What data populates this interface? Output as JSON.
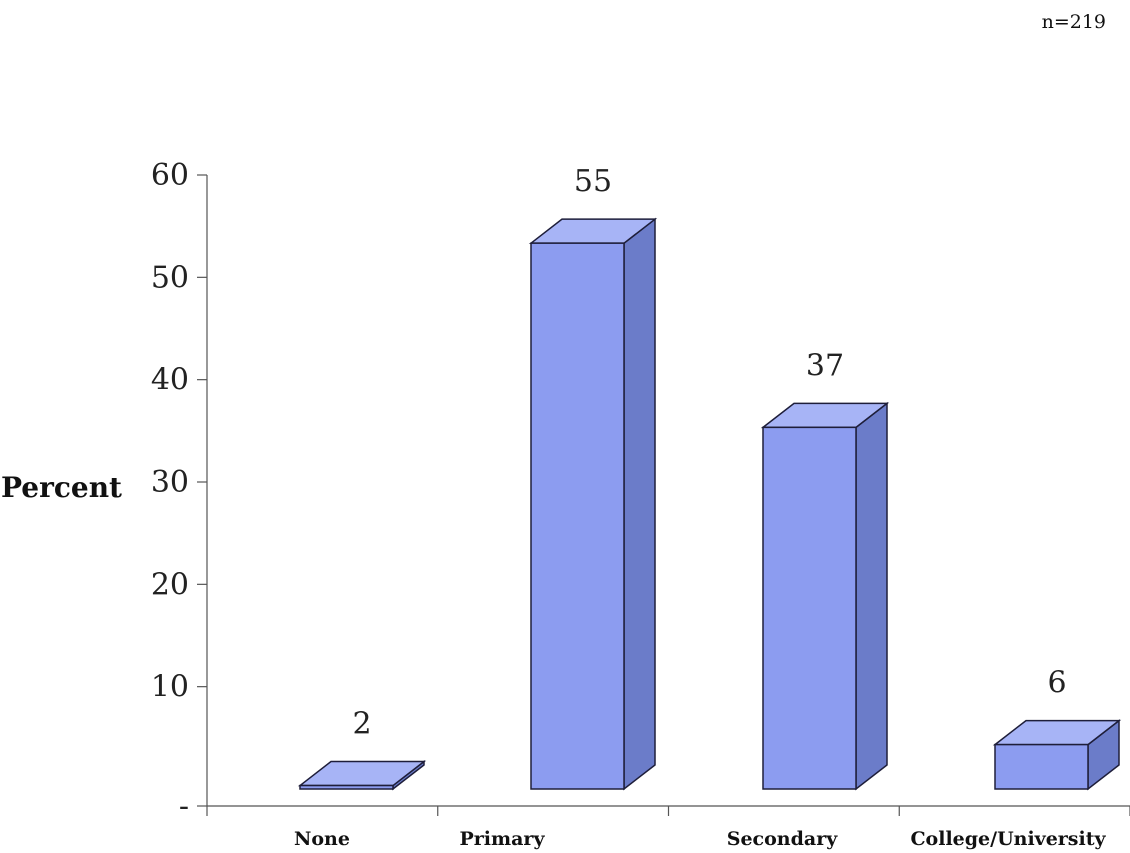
{
  "note": "n=219",
  "chart_data": {
    "type": "bar",
    "categories": [
      "None",
      "Primary",
      "Secondary",
      "College/University"
    ],
    "values": [
      2,
      55,
      37,
      6
    ],
    "data_labels": [
      "2",
      "55",
      "37",
      "6"
    ],
    "title": "",
    "xlabel": "",
    "ylabel": "Percent",
    "ylim": [
      0,
      60
    ],
    "yticks": [
      0,
      10,
      20,
      30,
      40,
      50,
      60
    ],
    "ytick_labels": [
      "-",
      "10",
      "20",
      "30",
      "40",
      "50",
      "60"
    ],
    "style": "3d",
    "grid": false,
    "colors": {
      "front": "#8c9cf0",
      "top": "#a7b4f6",
      "side": "#6b7cc9",
      "edge": "#1e1e3a"
    }
  }
}
